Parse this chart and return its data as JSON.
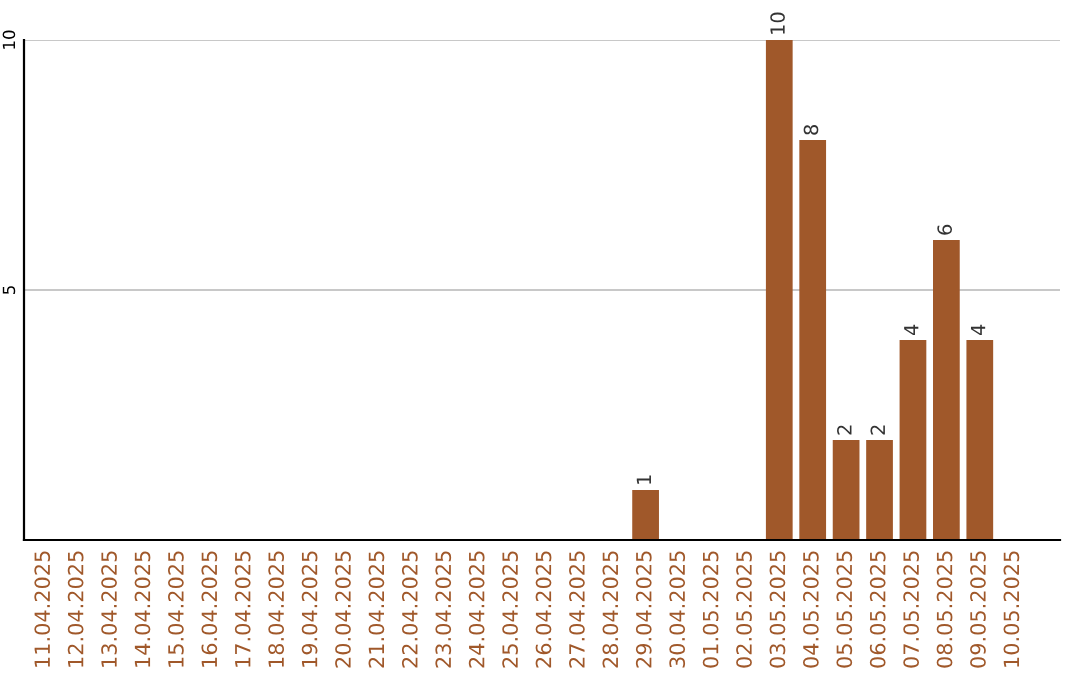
{
  "chart_data": {
    "type": "bar",
    "categories": [
      "11.04.2025",
      "12.04.2025",
      "13.04.2025",
      "14.04.2025",
      "15.04.2025",
      "16.04.2025",
      "17.04.2025",
      "18.04.2025",
      "19.04.2025",
      "20.04.2025",
      "21.04.2025",
      "22.04.2025",
      "23.04.2025",
      "24.04.2025",
      "25.04.2025",
      "26.04.2025",
      "27.04.2025",
      "28.04.2025",
      "29.04.2025",
      "30.04.2025",
      "01.05.2025",
      "02.05.2025",
      "03.05.2025",
      "04.05.2025",
      "05.05.2025",
      "06.05.2025",
      "07.05.2025",
      "08.05.2025",
      "09.05.2025",
      "10.05.2025"
    ],
    "values": [
      0,
      0,
      0,
      0,
      0,
      0,
      0,
      0,
      0,
      0,
      0,
      0,
      0,
      0,
      0,
      0,
      0,
      0,
      1,
      0,
      0,
      0,
      10,
      8,
      2,
      2,
      4,
      6,
      4,
      0
    ],
    "value_labels": [
      null,
      null,
      null,
      null,
      null,
      null,
      null,
      null,
      null,
      null,
      null,
      null,
      null,
      null,
      null,
      null,
      null,
      null,
      "1",
      null,
      null,
      null,
      "10",
      "8",
      "2",
      "2",
      "4",
      "6",
      "4",
      null
    ],
    "color": "#a0582a",
    "ylim": [
      0,
      10
    ],
    "yticks": [
      5,
      10
    ],
    "grid": "y"
  }
}
